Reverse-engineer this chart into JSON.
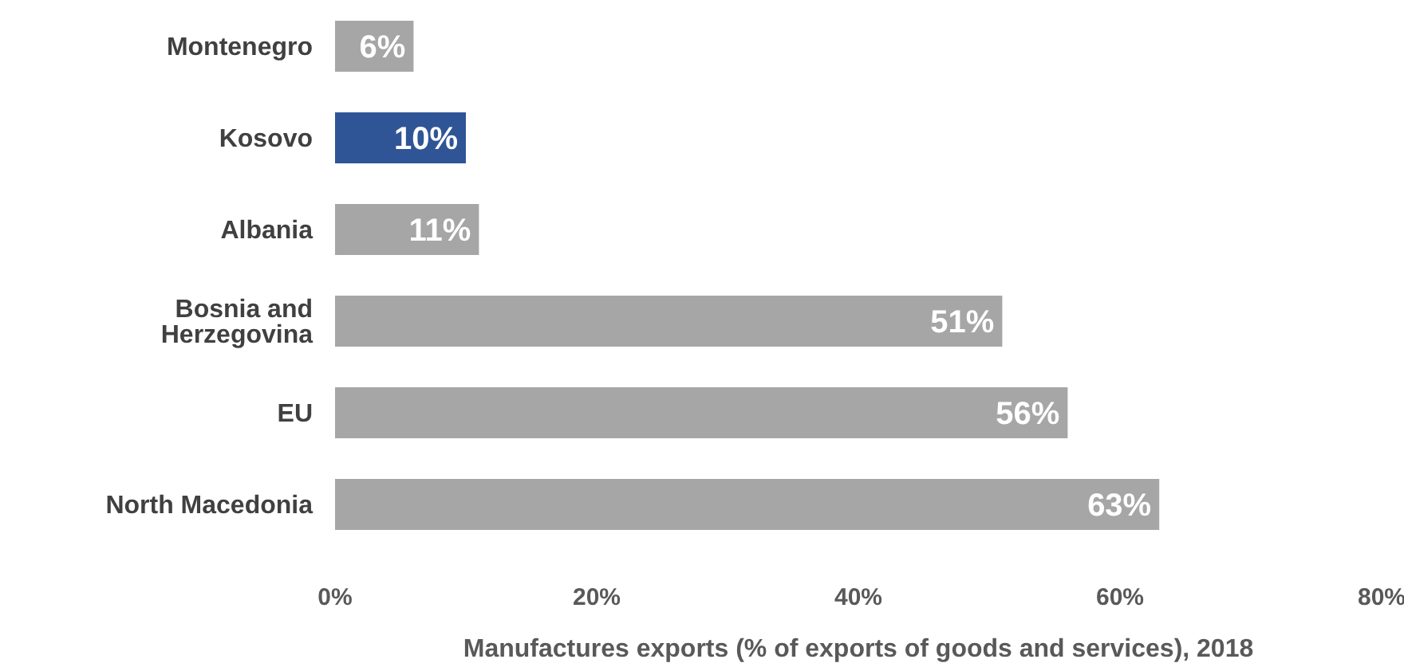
{
  "chart_data": {
    "type": "bar",
    "orientation": "horizontal",
    "xlabel": "Manufactures exports (% of exports of goods and services), 2018",
    "categories": [
      "Montenegro",
      "Kosovo",
      "Albania",
      "Bosnia and Herzegovina",
      "EU",
      "North Macedonia"
    ],
    "values": [
      6,
      10,
      11,
      51,
      56,
      63
    ],
    "colors": [
      "#a6a6a6",
      "#2f5597",
      "#a6a6a6",
      "#a6a6a6",
      "#a6a6a6",
      "#a6a6a6"
    ],
    "value_labels": [
      "6%",
      "10%",
      "11%",
      "51%",
      "56%",
      "63%"
    ],
    "xlim": [
      0,
      80
    ],
    "xticks": [
      {
        "value": 0,
        "label": "0%"
      },
      {
        "value": 20,
        "label": "20%"
      },
      {
        "value": 40,
        "label": "40%"
      },
      {
        "value": 60,
        "label": "60%"
      },
      {
        "value": 80,
        "label": "80%"
      }
    ],
    "grid": false,
    "legend": false
  }
}
